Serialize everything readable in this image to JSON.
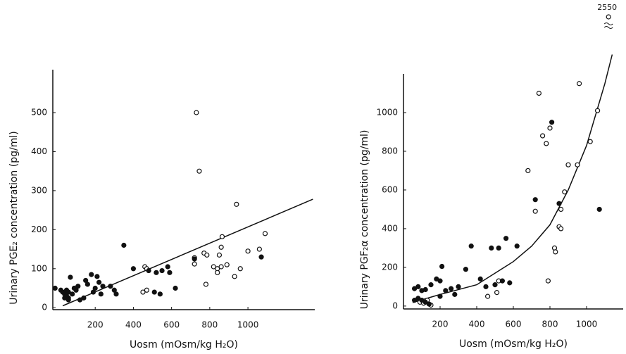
{
  "chart_data": [
    {
      "type": "scatter",
      "ylabel": "Urinary PGE₂ concentration (pg/ml)",
      "xlabel": "Uosm (mOsm/kg H₂O)",
      "xlim": [
        -22,
        1350
      ],
      "ylim": [
        -5,
        610
      ],
      "xticks": [
        200,
        400,
        600,
        800,
        1000
      ],
      "yticks": [
        0,
        100,
        200,
        300,
        400,
        500
      ],
      "series": [
        {
          "marker": "open",
          "color": "#111111",
          "x": [
            730,
            745,
            940,
            1090,
            865,
            1000,
            1060,
            860,
            770,
            785,
            850,
            720,
            720,
            820,
            840,
            860,
            890,
            960,
            930,
            780,
            840,
            460,
            470,
            470,
            450
          ],
          "values": [
            500,
            350,
            265,
            190,
            182,
            145,
            150,
            155,
            140,
            135,
            135,
            112,
            128,
            105,
            100,
            105,
            110,
            100,
            80,
            60,
            90,
            105,
            100,
            45,
            40
          ]
        },
        {
          "marker": "filled",
          "color": "#111111",
          "x": [
            350,
            -10,
            20,
            30,
            40,
            50,
            60,
            70,
            80,
            90,
            100,
            110,
            120,
            140,
            150,
            160,
            180,
            190,
            200,
            210,
            220,
            230,
            240,
            280,
            300,
            310,
            400,
            480,
            520,
            550,
            580,
            590,
            510,
            540,
            620,
            720,
            1070,
            40,
            60,
            50,
            60
          ],
          "values": [
            160,
            50,
            45,
            40,
            35,
            30,
            25,
            78,
            35,
            50,
            45,
            55,
            20,
            25,
            70,
            60,
            85,
            40,
            50,
            80,
            65,
            35,
            55,
            55,
            45,
            35,
            100,
            95,
            90,
            95,
            105,
            90,
            40,
            35,
            50,
            125,
            130,
            25,
            40,
            45,
            20
          ]
        }
      ],
      "fit": {
        "x": [
          30,
          1340
        ],
        "values": [
          5,
          278
        ]
      }
    },
    {
      "type": "scatter",
      "ylabel": "Urinary PGF₂α concentration (pg/ml)",
      "xlabel": "Uosm (mOsm/kg H₂O)",
      "xlim": [
        0,
        1200
      ],
      "ylim": [
        -15,
        1200
      ],
      "xticks": [
        200,
        400,
        600,
        800,
        1000
      ],
      "yticks": [
        0,
        200,
        400,
        600,
        800,
        1000
      ],
      "series": [
        {
          "marker": "open",
          "color": "#111111",
          "x": [
            740,
            960,
            1060,
            760,
            800,
            780,
            1020,
            680,
            900,
            950,
            720,
            880,
            860,
            850,
            860,
            825,
            830,
            790,
            460,
            510,
            520,
            90,
            110,
            130,
            150
          ],
          "values": [
            1100,
            1150,
            1010,
            880,
            920,
            840,
            850,
            700,
            730,
            730,
            490,
            590,
            500,
            410,
            400,
            300,
            280,
            130,
            50,
            70,
            130,
            20,
            15,
            30,
            5
          ]
        },
        {
          "marker": "filled",
          "color": "#111111",
          "x": [
            810,
            720,
            850,
            1070,
            370,
            480,
            520,
            620,
            560,
            340,
            450,
            500,
            540,
            580,
            210,
            180,
            200,
            150,
            120,
            100,
            80,
            60,
            60,
            80,
            100,
            120,
            140,
            200,
            230,
            260,
            300,
            280,
            420
          ],
          "values": [
            950,
            550,
            530,
            500,
            310,
            300,
            300,
            310,
            350,
            190,
            100,
            110,
            130,
            120,
            205,
            140,
            130,
            110,
            85,
            80,
            100,
            90,
            30,
            40,
            30,
            20,
            10,
            50,
            80,
            90,
            100,
            60,
            140
          ]
        }
      ],
      "fit": {
        "x": [
          50,
          200,
          400,
          600,
          700,
          800,
          900,
          1000,
          1100,
          1140
        ],
        "values": [
          18,
          60,
          110,
          230,
          310,
          420,
          600,
          830,
          1150,
          1300
        ]
      },
      "break_point": {
        "x": 1120,
        "y": 2550,
        "label": "2550"
      }
    }
  ]
}
